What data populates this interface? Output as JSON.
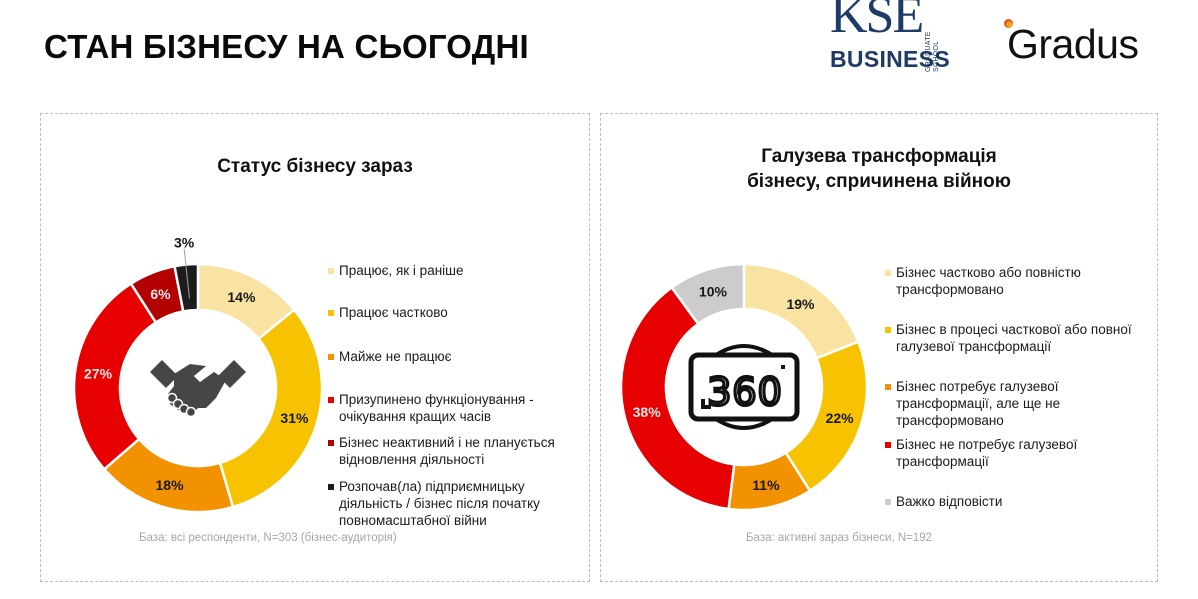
{
  "header": {
    "title": "СТАН БІЗНЕСУ НА СЬОГОДНІ",
    "logos": {
      "kse": {
        "main": "KSE",
        "side": "GRADUATE SCHOOL",
        "sub": "BUSINESS",
        "color": "#1d3b66"
      },
      "gradus": {
        "text": "Gradus"
      }
    }
  },
  "panels": [
    {
      "title": "Статус бізнесу зараз",
      "center_icon": "handshake-icon",
      "base_note": "База: всі респонденти, N=303 (бізнес-аудиторія)",
      "legend": [
        {
          "label": "Працює, як і раніше",
          "color": "#f9e3a3"
        },
        {
          "label": "Працює частково",
          "color": "#f7c300"
        },
        {
          "label": "Майже не працює",
          "color": "#f39200"
        },
        {
          "label": "Призупинено функціонування - очікування кращих часів",
          "color": "#e60000"
        },
        {
          "label": "Бізнес неактивний і не планується відновлення діяльності",
          "color": "#b30000"
        },
        {
          "label": "Розпочав(ла) підприємницьку діяльність / бізнес після початку повномасштабної війни",
          "color": "#1c1c1c"
        }
      ]
    },
    {
      "title_line1": "Галузева трансформація",
      "title_line2": "бізнесу, спричинена війною",
      "center_icon": "360-view-icon",
      "center_icon_text": "360",
      "base_note": "База: активні зараз бізнеси, N=192",
      "legend": [
        {
          "label": "Бізнес частково або повністю трансформовано",
          "color": "#f9e3a3"
        },
        {
          "label": "Бізнес в процесі часткової або повної галузевої трансформації",
          "color": "#f7c300"
        },
        {
          "label": "Бізнес потребує галузевої трансформації, але ще не трансформовано",
          "color": "#f39200"
        },
        {
          "label": "Бізнес не потребує галузевої трансформації",
          "color": "#e60000"
        },
        {
          "label": "Важко відповісти",
          "color": "#cccccc"
        }
      ]
    }
  ],
  "chart_data": [
    {
      "type": "pie",
      "subtype": "donut",
      "title": "Статус бізнесу зараз",
      "categories": [
        "Працює, як і раніше",
        "Працює частково",
        "Майже не працює",
        "Призупинено функціонування - очікування кращих часів",
        "Бізнес неактивний і не планується відновлення діяльності",
        "Розпочав(ла) підприємницьку діяльність / бізнес після початку повномасштабної війни"
      ],
      "values": [
        14,
        31,
        18,
        27,
        6,
        3
      ],
      "labels": [
        "14%",
        "31%",
        "18%",
        "27%",
        "6%",
        "3%"
      ],
      "colors": [
        "#f9e3a3",
        "#f7c300",
        "#f39200",
        "#e60000",
        "#b30000",
        "#1c1c1c"
      ],
      "unit": "%",
      "legend_position": "right",
      "note": "База: всі респонденти, N=303 (бізнес-аудиторія)"
    },
    {
      "type": "pie",
      "subtype": "donut",
      "title": "Галузева трансформація бізнесу, спричинена війною",
      "categories": [
        "Бізнес частково або повністю трансформовано",
        "Бізнес в процесі часткової або повної галузевої трансформації",
        "Бізнес потребує галузевої трансформації, але ще не трансформовано",
        "Бізнес не потребує галузевої трансформації",
        "Важко відповісти"
      ],
      "values": [
        19,
        22,
        11,
        38,
        10
      ],
      "labels": [
        "19%",
        "22%",
        "11%",
        "38%",
        "10%"
      ],
      "colors": [
        "#f9e3a3",
        "#f7c300",
        "#f39200",
        "#e60000",
        "#cccccc"
      ],
      "unit": "%",
      "legend_position": "right",
      "note": "База: активні зараз бізнеси, N=192"
    }
  ]
}
